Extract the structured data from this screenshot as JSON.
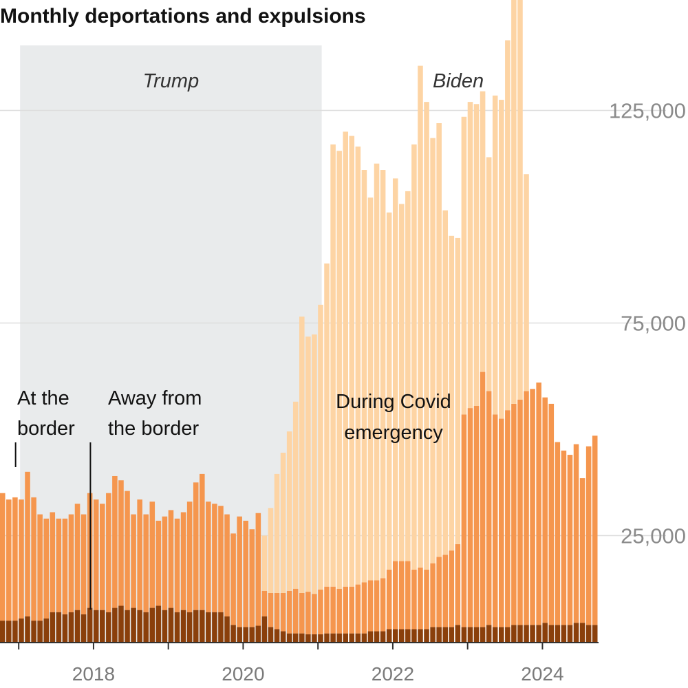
{
  "chart_data": {
    "type": "bar",
    "stacked": true,
    "title": "Monthly deportations and expulsions",
    "colors": {
      "away_from_border": "#8a3f0b",
      "at_border": "#f5964e",
      "covid_emergency": "#fdd4a4",
      "shading": "#e9ebec",
      "grid": "#dddddd",
      "axis": "#333333"
    },
    "ylim": [
      0,
      135000
    ],
    "yticks": [
      {
        "value": 25000,
        "label": "25,000"
      },
      {
        "value": 75000,
        "label": "75,000"
      },
      {
        "value": 125000,
        "label": "125,000"
      }
    ],
    "xticks": [
      {
        "year": 2018,
        "label": "2018"
      },
      {
        "year": 2020,
        "label": "2020"
      },
      {
        "year": 2022,
        "label": "2022"
      },
      {
        "year": 2024,
        "label": "2024"
      }
    ],
    "x_start": "2016-10",
    "x_end": "2024-09",
    "periods": [
      {
        "label": "Trump",
        "start": "2017-01",
        "end": "2021-01",
        "shaded": true
      },
      {
        "label": "Biden",
        "start": "2021-01",
        "end": "2024-09",
        "shaded": false
      }
    ],
    "annotations": [
      {
        "lines": [
          "At the",
          "border"
        ],
        "month": "2016-12"
      },
      {
        "lines": [
          "Away from",
          "the border"
        ],
        "month": "2017-12"
      },
      {
        "lines": [
          "During Covid",
          "emergency"
        ],
        "month": "2021-12"
      }
    ],
    "series": [
      {
        "name": "Away from the border",
        "start": "2016-10",
        "values": [
          5000,
          5000,
          5000,
          5500,
          6000,
          5000,
          5000,
          5500,
          7000,
          7000,
          6500,
          7000,
          7500,
          6500,
          8000,
          7500,
          7500,
          7000,
          8000,
          8500,
          7500,
          8000,
          7500,
          7000,
          8000,
          8500,
          7500,
          8000,
          7000,
          7500,
          7000,
          7500,
          7500,
          7000,
          7000,
          7000,
          6000,
          4000,
          3500,
          3500,
          3500,
          3800,
          6000,
          3500,
          3000,
          2500,
          2000,
          2000,
          2000,
          1800,
          1800,
          1800,
          2000,
          2000,
          2000,
          2000,
          2000,
          2000,
          2000,
          2500,
          2500,
          2500,
          3000,
          3000,
          3000,
          3000,
          3000,
          3000,
          3000,
          3500,
          3500,
          3500,
          3500,
          4000,
          3500,
          3500,
          3500,
          3500,
          4000,
          3500,
          3500,
          3500,
          4000,
          4000,
          4000,
          4000,
          4000,
          4500,
          4000,
          4000,
          4000,
          4000,
          4500,
          4500,
          4000,
          4000
        ]
      },
      {
        "name": "At the border",
        "start": "2016-10",
        "values": [
          30000,
          28500,
          29000,
          28000,
          34000,
          29000,
          25000,
          23500,
          23500,
          22000,
          22500,
          23000,
          25000,
          23500,
          27000,
          26000,
          25000,
          28000,
          31000,
          29500,
          28000,
          22000,
          26000,
          23000,
          25000,
          20000,
          22000,
          23000,
          22000,
          23000,
          26000,
          30000,
          32000,
          26000,
          25500,
          25000,
          24000,
          21500,
          26000,
          25000,
          23000,
          26500,
          6000,
          8000,
          8500,
          9000,
          10000,
          10500,
          9500,
          10000,
          9500,
          10500,
          11000,
          11000,
          10500,
          11000,
          11000,
          11500,
          12000,
          12000,
          12000,
          12500,
          14000,
          16000,
          16000,
          16000,
          14000,
          14500,
          14000,
          15000,
          16500,
          17000,
          18000,
          19000,
          50000,
          51500,
          52000,
          60000,
          55000,
          50000,
          49000,
          51000,
          52000,
          53000,
          55000,
          55500,
          57000,
          53000,
          52000,
          43000,
          41000,
          40000,
          42000,
          34000,
          42000,
          44500
        ]
      },
      {
        "name": "During Covid emergency",
        "start": "2020-04",
        "values": [
          13000,
          20000,
          28000,
          33000,
          37500,
          44000,
          65000,
          60000,
          61000,
          67000,
          76000,
          104000,
          103000,
          107000,
          106000,
          103000,
          97000,
          90000,
          98000,
          96000,
          84000,
          90000,
          84000,
          87000,
          100000,
          118000,
          110000,
          100000,
          102000,
          81000,
          74000,
          72000,
          70000,
          72000,
          71000,
          66000,
          55000,
          75000,
          75000,
          87000,
          105000,
          105000,
          51000
        ]
      }
    ]
  }
}
